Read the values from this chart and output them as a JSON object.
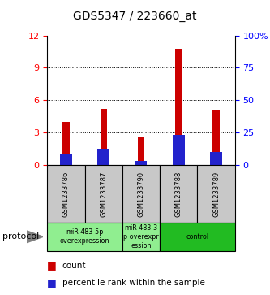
{
  "title": "GDS5347 / 223660_at",
  "samples": [
    "GSM1233786",
    "GSM1233787",
    "GSM1233790",
    "GSM1233788",
    "GSM1233789"
  ],
  "red_values": [
    4.0,
    5.2,
    2.6,
    10.8,
    5.1
  ],
  "blue_values": [
    1.0,
    1.5,
    0.4,
    2.8,
    1.2
  ],
  "ylim_left": [
    0,
    12
  ],
  "ylim_right": [
    0,
    100
  ],
  "left_ticks": [
    0,
    3,
    6,
    9,
    12
  ],
  "right_ticks": [
    0,
    25,
    50,
    75,
    100
  ],
  "right_tick_labels": [
    "0",
    "25",
    "50",
    "75",
    "100%"
  ],
  "red_color": "#cc0000",
  "blue_color": "#2222cc",
  "bg_color": "#ffffff",
  "label_area_color": "#c8c8c8",
  "protocol_groups": [
    {
      "label": "miR-483-5p\noverexpression",
      "indices": [
        0,
        1
      ],
      "color": "#90EE90"
    },
    {
      "label": "miR-483-3\np overexpr\nession",
      "indices": [
        2
      ],
      "color": "#90EE90"
    },
    {
      "label": "control",
      "indices": [
        3,
        4
      ],
      "color": "#22bb22"
    }
  ],
  "legend_count_label": "count",
  "legend_pct_label": "percentile rank within the sample",
  "protocol_label": "protocol"
}
